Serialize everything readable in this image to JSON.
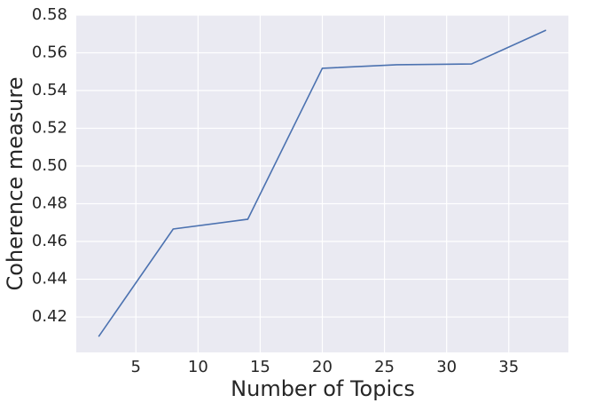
{
  "chart_data": {
    "type": "line",
    "xlabel": "Number of Topics",
    "ylabel": "Coherence measure",
    "x": [
      2,
      8,
      14,
      20,
      26,
      32,
      38
    ],
    "series": [
      {
        "color": "#4c72b0",
        "values": [
          0.4096,
          0.4666,
          0.4718,
          0.5518,
          0.5537,
          0.5541,
          0.572
        ]
      }
    ],
    "xlim": [
      0.2,
      39.8
    ],
    "ylim": [
      0.4012,
      0.58
    ],
    "xticks": [
      5,
      10,
      15,
      20,
      25,
      30,
      35
    ],
    "yticks": [
      0.42,
      0.44,
      0.46,
      0.48,
      {
        "value": 0.5,
        "label": "0.50"
      },
      0.52,
      0.54,
      0.56,
      0.58
    ],
    "grid": true
  }
}
